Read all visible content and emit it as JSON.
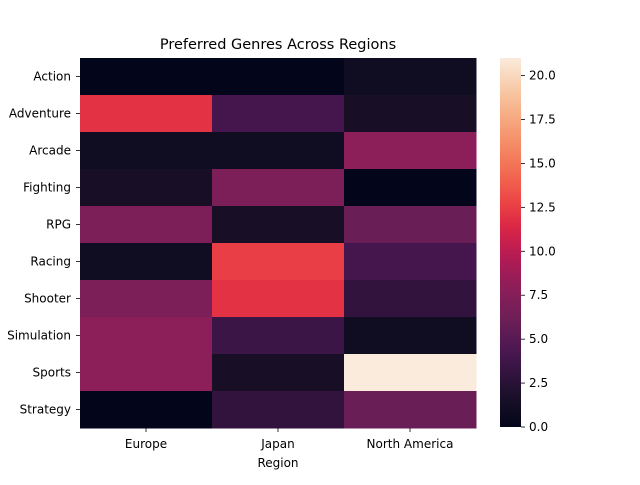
{
  "chart_data": {
    "type": "heatmap",
    "title": "Preferred Genres Across Regions",
    "xlabel": "Region",
    "ylabel": "",
    "x_categories": [
      "Europe",
      "Japan",
      "North America"
    ],
    "y_categories": [
      "Action",
      "Adventure",
      "Arcade",
      "Fighting",
      "RPG",
      "Racing",
      "Shooter",
      "Simulation",
      "Sports",
      "Strategy"
    ],
    "values": [
      [
        0,
        0,
        1
      ],
      [
        12,
        4,
        1.5
      ],
      [
        1,
        1,
        8
      ],
      [
        1.5,
        7,
        0
      ],
      [
        7,
        1.5,
        6
      ],
      [
        1,
        12.5,
        4
      ],
      [
        7,
        12,
        3
      ],
      [
        8,
        3.5,
        1
      ],
      [
        8,
        1.5,
        21
      ],
      [
        0,
        3,
        6
      ]
    ],
    "colorbar": {
      "min": 0,
      "max": 21,
      "ticks": [
        "0.0",
        "2.5",
        "5.0",
        "7.5",
        "10.0",
        "12.5",
        "15.0",
        "17.5",
        "20.0"
      ]
    },
    "colormap": "rocket"
  }
}
